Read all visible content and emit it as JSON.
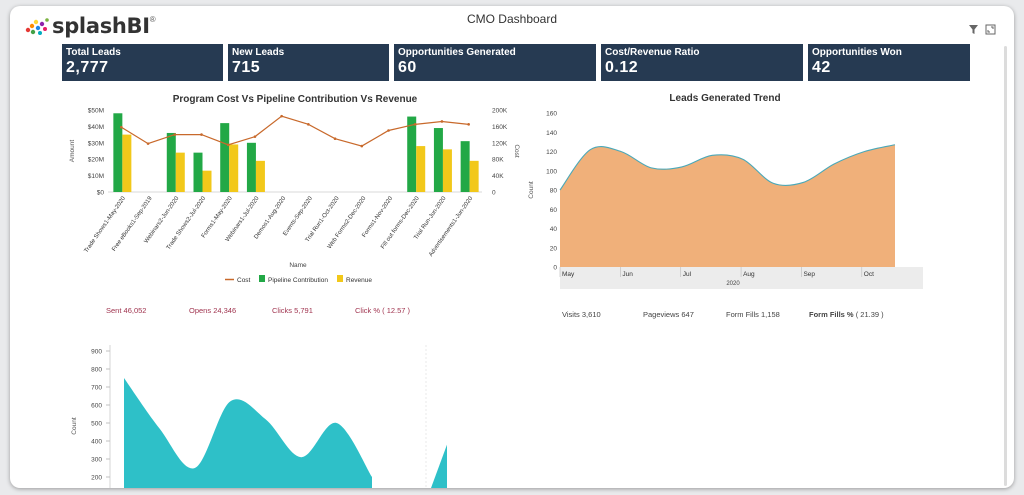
{
  "app": {
    "brand": "splashBI",
    "brand_reg": "®",
    "title": "CMO Dashboard"
  },
  "toolbar": {
    "filter_icon": "filter-icon",
    "expand_icon": "fullscreen-icon"
  },
  "kpis": [
    {
      "label": "Total Leads",
      "value": "2,777"
    },
    {
      "label": "New Leads",
      "value": "715"
    },
    {
      "label": "Opportunities Generated",
      "value": "60"
    },
    {
      "label": "Cost/Revenue Ratio",
      "value": "0.12"
    },
    {
      "label": "Opportunities Won",
      "value": "42"
    }
  ],
  "colors": {
    "kpi_bg": "#263a52",
    "pipeline": "#22a846",
    "revenue": "#f2c81a",
    "cost": "#c8692b",
    "area_orange": "#f0b07a",
    "area_teal": "#2ec0c8",
    "metric_red": "#a0344f"
  },
  "chart_data": [
    {
      "type": "bar",
      "title": "Program Cost Vs Pipeline Contribution Vs Revenue",
      "xlabel": "Name",
      "ylabel": "Amount",
      "y2label": "Cost",
      "ylim": [
        0,
        50000000
      ],
      "y2lim": [
        0,
        200000
      ],
      "y_ticks": [
        "$0",
        "$10M",
        "$20M",
        "$30M",
        "$40M",
        "$50M"
      ],
      "y2_ticks": [
        "0",
        "40K",
        "80K",
        "120K",
        "160K",
        "200K"
      ],
      "categories": [
        "Trade Shows1-May-2020",
        "Free eBooks1-Sep-2019",
        "Webinars2-Jun-2020",
        "Trade Shows2-Jul-2020",
        "Forms1-May-2020",
        "Webinars1-Jul-2020",
        "Demos1-Aug-2020",
        "Events-Sep-2020",
        "Trial Run1-Oct-2020",
        "Web Forms2-Dec-2020",
        "Forms1-Nov-2020",
        "Fill out forms-Dec-2020",
        "Trial Run-Jun-2020",
        "Advertisements1-Jun-2020"
      ],
      "series": [
        {
          "name": "Cost",
          "kind": "line",
          "axis": "y2",
          "values": [
            158000,
            118000,
            140000,
            140000,
            115000,
            135000,
            185000,
            165000,
            130000,
            112000,
            150000,
            165000,
            172000,
            165000
          ]
        },
        {
          "name": "Pipeline Contribution",
          "kind": "bar",
          "axis": "y",
          "values": [
            48000000,
            0,
            36000000,
            24000000,
            42000000,
            30000000,
            0,
            0,
            0,
            0,
            0,
            46000000,
            39000000,
            31000000
          ]
        },
        {
          "name": "Revenue",
          "kind": "bar",
          "axis": "y",
          "values": [
            35000000,
            0,
            24000000,
            13000000,
            29000000,
            19000000,
            0,
            0,
            0,
            0,
            0,
            28000000,
            26000000,
            19000000
          ]
        }
      ],
      "legend": [
        "Cost",
        "Pipeline Contribution",
        "Revenue"
      ]
    },
    {
      "type": "area",
      "title": "Leads Generated Trend",
      "xlabel": "2020",
      "ylabel": "Count",
      "ylim": [
        0,
        160
      ],
      "y_ticks": [
        "0",
        "20",
        "40",
        "60",
        "80",
        "100",
        "120",
        "140",
        "160"
      ],
      "x_ticks": [
        "May",
        "Jun",
        "Jul",
        "Aug",
        "Sep",
        "Oct"
      ],
      "x": [
        0,
        0.5,
        1,
        1.5,
        2,
        2.5,
        3,
        3.5,
        4,
        4.5,
        5,
        5.5
      ],
      "values": [
        80,
        122,
        120,
        103,
        104,
        116,
        112,
        87,
        88,
        107,
        120,
        127
      ]
    },
    {
      "type": "area",
      "title": "",
      "xlabel": "",
      "ylabel": "Count",
      "ylim": [
        150,
        950
      ],
      "y_ticks": [
        "200",
        "300",
        "400",
        "500",
        "600",
        "700",
        "800",
        "900"
      ],
      "x": [
        0,
        1,
        2,
        3,
        4,
        5,
        6,
        7,
        8,
        9
      ],
      "values": [
        750,
        470,
        250,
        620,
        520,
        310,
        500,
        200,
        150,
        380
      ]
    }
  ],
  "email_metrics": [
    {
      "label": "Sent",
      "value": "46,052"
    },
    {
      "label": "Opens",
      "value": "24,346"
    },
    {
      "label": "Clicks",
      "value": "5,791"
    },
    {
      "label": "Click %",
      "value": "( 12.57 )"
    }
  ],
  "web_metrics": [
    {
      "label": "Visits",
      "value": "3,610"
    },
    {
      "label": "Pageviews",
      "value": "647"
    },
    {
      "label": "Form Fills",
      "value": "1,158"
    },
    {
      "label": "Form Fills %",
      "value": "( 21.39 )"
    }
  ]
}
